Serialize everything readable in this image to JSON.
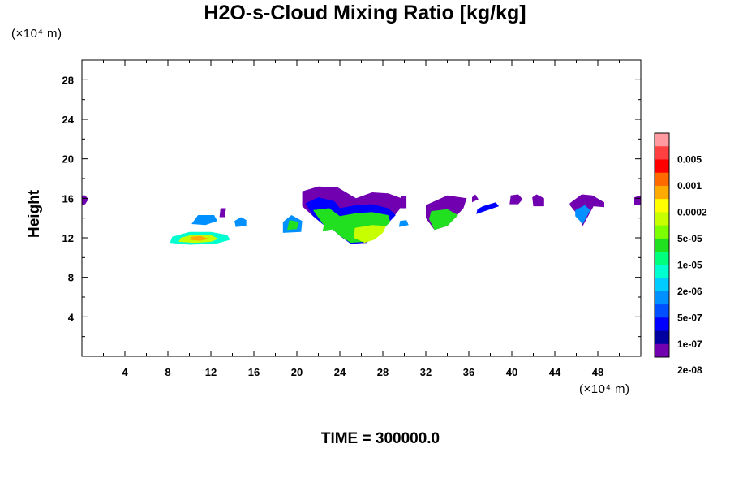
{
  "chart_data": {
    "type": "heatmap",
    "title": "H2O-s-Cloud Mixing Ratio [kg/kg]",
    "ylabel": "Height",
    "x_unit": "(×10⁴ m)",
    "y_unit": "(×10⁴ m)",
    "footer": "TIME = 300000.0",
    "xlim": [
      0,
      52
    ],
    "ylim": [
      0,
      30
    ],
    "x_ticks": [
      "4",
      "8",
      "12",
      "16",
      "20",
      "24",
      "28",
      "32",
      "36",
      "40",
      "44",
      "48"
    ],
    "y_ticks": [
      "4",
      "8",
      "12",
      "16",
      "20",
      "24",
      "28"
    ],
    "colorbar": {
      "labels": [
        "0.005",
        "0.001",
        "0.0002",
        "5e-05",
        "1e-05",
        "2e-06",
        "5e-07",
        "1e-07",
        "2e-08"
      ],
      "colors": [
        "#ff9aa0",
        "#ff4040",
        "#ff0000",
        "#ff6a00",
        "#ffaa00",
        "#ffff00",
        "#c8ff00",
        "#7cff00",
        "#20e020",
        "#00ff7c",
        "#00ffd0",
        "#00ccff",
        "#0090ff",
        "#0050ff",
        "#0000ff",
        "#0000a0",
        "#7000b0"
      ]
    },
    "regions": [
      {
        "x": [
          0,
          0.3,
          0.6,
          0.3,
          0
        ],
        "y": [
          15.3,
          15.4,
          15.9,
          16.3,
          16.3
        ],
        "level": "1e-07"
      },
      {
        "x": [
          8.2,
          10,
          12.5,
          13.8,
          13.5,
          12,
          10,
          8.4
        ],
        "y": [
          11.5,
          11.3,
          11.4,
          11.8,
          12.3,
          12.6,
          12.6,
          12.1
        ],
        "level": "1e-05"
      },
      {
        "x": [
          9,
          10.5,
          12,
          12.7,
          12,
          10.2,
          9.2
        ],
        "y": [
          11.6,
          11.5,
          11.6,
          11.9,
          12.3,
          12.3,
          12
        ],
        "level": "0.0002"
      },
      {
        "x": [
          10,
          11,
          11.8,
          11,
          10.2
        ],
        "y": [
          11.8,
          11.7,
          11.9,
          12.2,
          12.1
        ],
        "level": "0.001"
      },
      {
        "x": [
          10.2,
          11.5,
          12.6,
          12.3,
          10.8
        ],
        "y": [
          13.4,
          13.3,
          13.7,
          14.3,
          14.3
        ],
        "level": "2e-06"
      },
      {
        "x": [
          12.8,
          13.3,
          13.4,
          12.9
        ],
        "y": [
          14.1,
          14.1,
          15,
          15
        ],
        "level": "1e-07"
      },
      {
        "x": [
          14.3,
          15.3,
          15.3,
          14.8,
          14.2
        ],
        "y": [
          13.1,
          13.2,
          13.8,
          14.1,
          13.7
        ],
        "level": "2e-06"
      },
      {
        "x": [
          18.7,
          20.4,
          20.5,
          19.5,
          18.7
        ],
        "y": [
          12.5,
          12.6,
          13.7,
          14.3,
          13.6
        ],
        "level": "2e-06"
      },
      {
        "x": [
          19.1,
          20,
          20.2,
          19.3
        ],
        "y": [
          12.8,
          12.9,
          13.6,
          13.8
        ],
        "level": "5e-05"
      },
      {
        "x": [
          20.5,
          22,
          23.8,
          25.5,
          27,
          28.5,
          30,
          29.5,
          28.5,
          27.5,
          26.5,
          25,
          24,
          23.2,
          22.5,
          21.5,
          20.5
        ],
        "y": [
          16.7,
          17.2,
          17.1,
          16,
          16.6,
          16.5,
          15.9,
          14.8,
          13.5,
          12.5,
          11.5,
          11.4,
          12.2,
          13,
          13.3,
          14.2,
          15.2
        ],
        "level": "1e-07"
      },
      {
        "x": [
          20.8,
          22,
          23.5,
          24,
          25.5,
          27,
          28.5,
          29.2,
          28.5,
          27.5,
          26.5,
          25,
          24,
          23.2,
          22.5,
          21.5
        ],
        "y": [
          15.5,
          16.1,
          15.7,
          15,
          15.3,
          15.4,
          15,
          14.3,
          13.5,
          12.5,
          11.5,
          11.4,
          12.2,
          13,
          13.3,
          14.2
        ],
        "level": "5e-07"
      },
      {
        "x": [
          21.5,
          23,
          24,
          25.5,
          27,
          28.5,
          28.7,
          28,
          27.3,
          26.3,
          25,
          24,
          23.2,
          22.5
        ],
        "y": [
          14.8,
          15,
          14.2,
          14.5,
          14.6,
          14.3,
          13.6,
          12.9,
          11.9,
          11.6,
          11.5,
          12.2,
          13,
          13.3
        ],
        "level": "5e-05"
      },
      {
        "x": [
          25.4,
          27,
          28.3,
          28,
          27.2,
          26.3,
          25.3
        ],
        "y": [
          13,
          13.3,
          13.2,
          12.5,
          11.8,
          11.5,
          12
        ],
        "level": "0.0002"
      },
      {
        "x": [
          22.4,
          23.6,
          23.4,
          22.6
        ],
        "y": [
          12.7,
          12.9,
          13.9,
          13.7
        ],
        "level": "5e-05"
      },
      {
        "x": [
          29.6,
          30.2,
          30.2,
          29.7
        ],
        "y": [
          15,
          15,
          16.3,
          16.2
        ],
        "level": "1e-07"
      },
      {
        "x": [
          29.5,
          30.4,
          30.2,
          29.6
        ],
        "y": [
          13.1,
          13.3,
          13.8,
          13.7
        ],
        "level": "2e-06"
      },
      {
        "x": [
          32,
          34,
          35.8,
          35.5,
          34,
          32.8,
          32
        ],
        "y": [
          15.3,
          16.3,
          16,
          15,
          13.2,
          12.8,
          14
        ],
        "level": "1e-07"
      },
      {
        "x": [
          32.5,
          34,
          35,
          34,
          32.8,
          32.3
        ],
        "y": [
          14.7,
          14.9,
          14.3,
          13.2,
          12.8,
          13.9
        ],
        "level": "5e-05"
      },
      {
        "x": [
          36.3,
          36.9,
          36.6,
          36.3
        ],
        "y": [
          15.6,
          15.9,
          16.4,
          16.1
        ],
        "level": "1e-07"
      },
      {
        "x": [
          36.7,
          38.8,
          38.5,
          37.3,
          36.8
        ],
        "y": [
          14.4,
          15.2,
          15.6,
          15.2,
          14.9
        ],
        "level": "5e-07"
      },
      {
        "x": [
          39.8,
          40.6,
          41,
          40.6,
          39.9
        ],
        "y": [
          15.4,
          15.4,
          15.9,
          16.4,
          16.3
        ],
        "level": "1e-07"
      },
      {
        "x": [
          42,
          43,
          43,
          42.3,
          41.9
        ],
        "y": [
          15.2,
          15.2,
          16,
          16.4,
          16.1
        ],
        "level": "1e-07"
      },
      {
        "x": [
          45.4,
          46.5,
          47.5,
          48.6,
          48.6,
          47.6,
          46.6,
          46,
          45.4
        ],
        "y": [
          15.5,
          16.4,
          16.3,
          15.6,
          15.1,
          15.2,
          13.2,
          14.5,
          15.3
        ],
        "level": "1e-07"
      },
      {
        "x": [
          45.9,
          46.8,
          47.3,
          46.6,
          45.9
        ],
        "y": [
          14.8,
          15.3,
          14.8,
          13.4,
          14.2
        ],
        "level": "2e-06"
      },
      {
        "x": [
          51.4,
          52,
          52,
          51.4
        ],
        "y": [
          15.3,
          15.3,
          16.3,
          16.1
        ],
        "level": "1e-07"
      }
    ]
  }
}
